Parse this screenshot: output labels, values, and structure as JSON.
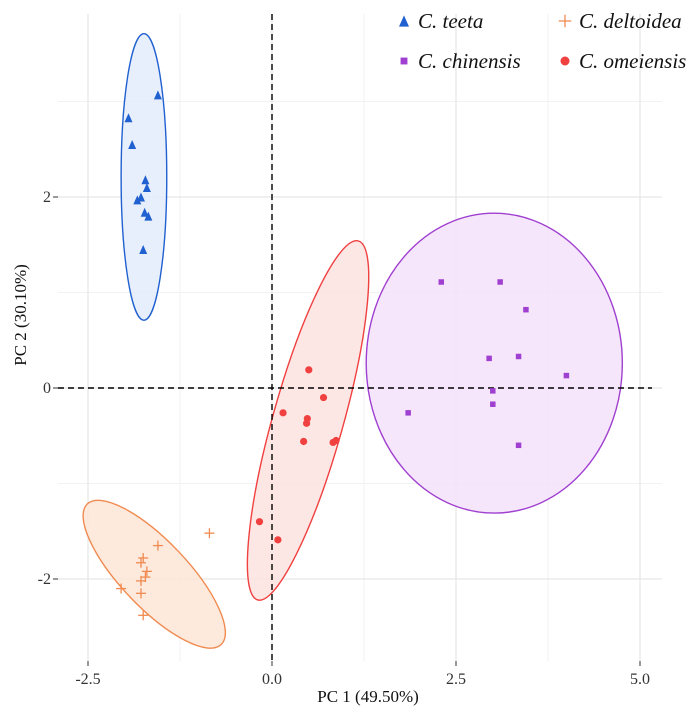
{
  "chart_data": {
    "type": "scatter",
    "xlabel": "PC 1 (49.50%)",
    "ylabel": "PC 2 (30.10%)",
    "xlim": [
      -3.0,
      5.0
    ],
    "ylim": [
      -2.75,
      3.9
    ],
    "xticks": [
      {
        "value": -2.5,
        "label": "-2.5"
      },
      {
        "value": 0.0,
        "label": "0.0"
      },
      {
        "value": 2.5,
        "label": "2.5"
      },
      {
        "value": 5.0,
        "label": "5.0"
      }
    ],
    "yticks": [
      {
        "value": -2,
        "label": "-2"
      },
      {
        "value": 0,
        "label": "0"
      },
      {
        "value": 2,
        "label": "2"
      }
    ],
    "grid": true,
    "reference_lines": {
      "x": 0,
      "y": 0,
      "style": "dashed"
    },
    "legend_position": "top-right",
    "series": [
      {
        "name": "C. teeta",
        "marker": "triangle",
        "color": "#2060d0",
        "fill": "#e3ecfb",
        "points": [
          [
            -1.55,
            3.07
          ],
          [
            -1.95,
            2.83
          ],
          [
            -1.9,
            2.55
          ],
          [
            -1.72,
            2.18
          ],
          [
            -1.7,
            2.1
          ],
          [
            -1.78,
            2.0
          ],
          [
            -1.83,
            1.97
          ],
          [
            -1.73,
            1.84
          ],
          [
            -1.68,
            1.8
          ],
          [
            -1.75,
            1.45
          ]
        ],
        "ellipse": {
          "cx": -1.74,
          "cy": 2.21,
          "rx": 0.31,
          "ry": 1.5,
          "angle": 0
        }
      },
      {
        "name": "C. deltoidea",
        "marker": "plus",
        "color": "#f08a50",
        "fill": "#fde6d6",
        "points": [
          [
            -0.85,
            -1.52
          ],
          [
            -1.55,
            -1.65
          ],
          [
            -1.75,
            -1.78
          ],
          [
            -1.78,
            -1.83
          ],
          [
            -1.7,
            -1.92
          ],
          [
            -1.72,
            -1.98
          ],
          [
            -1.78,
            -2.02
          ],
          [
            -2.05,
            -2.1
          ],
          [
            -1.78,
            -2.15
          ],
          [
            -1.75,
            -2.38
          ]
        ],
        "ellipse": {
          "cx": -1.6,
          "cy": -1.95,
          "rx": 1.17,
          "ry": 0.38,
          "angle": -39
        }
      },
      {
        "name": "C. chinensis",
        "marker": "square",
        "color": "#a040d0",
        "fill": "#f4e2fa",
        "points": [
          [
            2.3,
            1.11
          ],
          [
            3.1,
            1.11
          ],
          [
            3.45,
            0.82
          ],
          [
            2.95,
            0.31
          ],
          [
            3.35,
            0.33
          ],
          [
            4.0,
            0.13
          ],
          [
            3.0,
            -0.03
          ],
          [
            3.0,
            -0.17
          ],
          [
            1.85,
            -0.26
          ],
          [
            3.35,
            -0.6
          ]
        ],
        "ellipse": {
          "cx": 3.02,
          "cy": 0.26,
          "rx": 1.74,
          "ry": 1.57,
          "angle": 0
        }
      },
      {
        "name": "C. omeiensis",
        "marker": "circle",
        "color": "#f04040",
        "fill": "#fde3e1",
        "points": [
          [
            0.5,
            0.19
          ],
          [
            0.7,
            -0.1
          ],
          [
            0.15,
            -0.26
          ],
          [
            0.48,
            -0.32
          ],
          [
            0.47,
            -0.37
          ],
          [
            0.87,
            -0.55
          ],
          [
            0.83,
            -0.57
          ],
          [
            0.43,
            -0.56
          ],
          [
            -0.17,
            -1.4
          ],
          [
            0.08,
            -1.59
          ]
        ],
        "ellipse": {
          "cx": 0.49,
          "cy": -0.34,
          "rx": 2.0,
          "ry": 0.46,
          "angle": 70
        }
      }
    ]
  }
}
